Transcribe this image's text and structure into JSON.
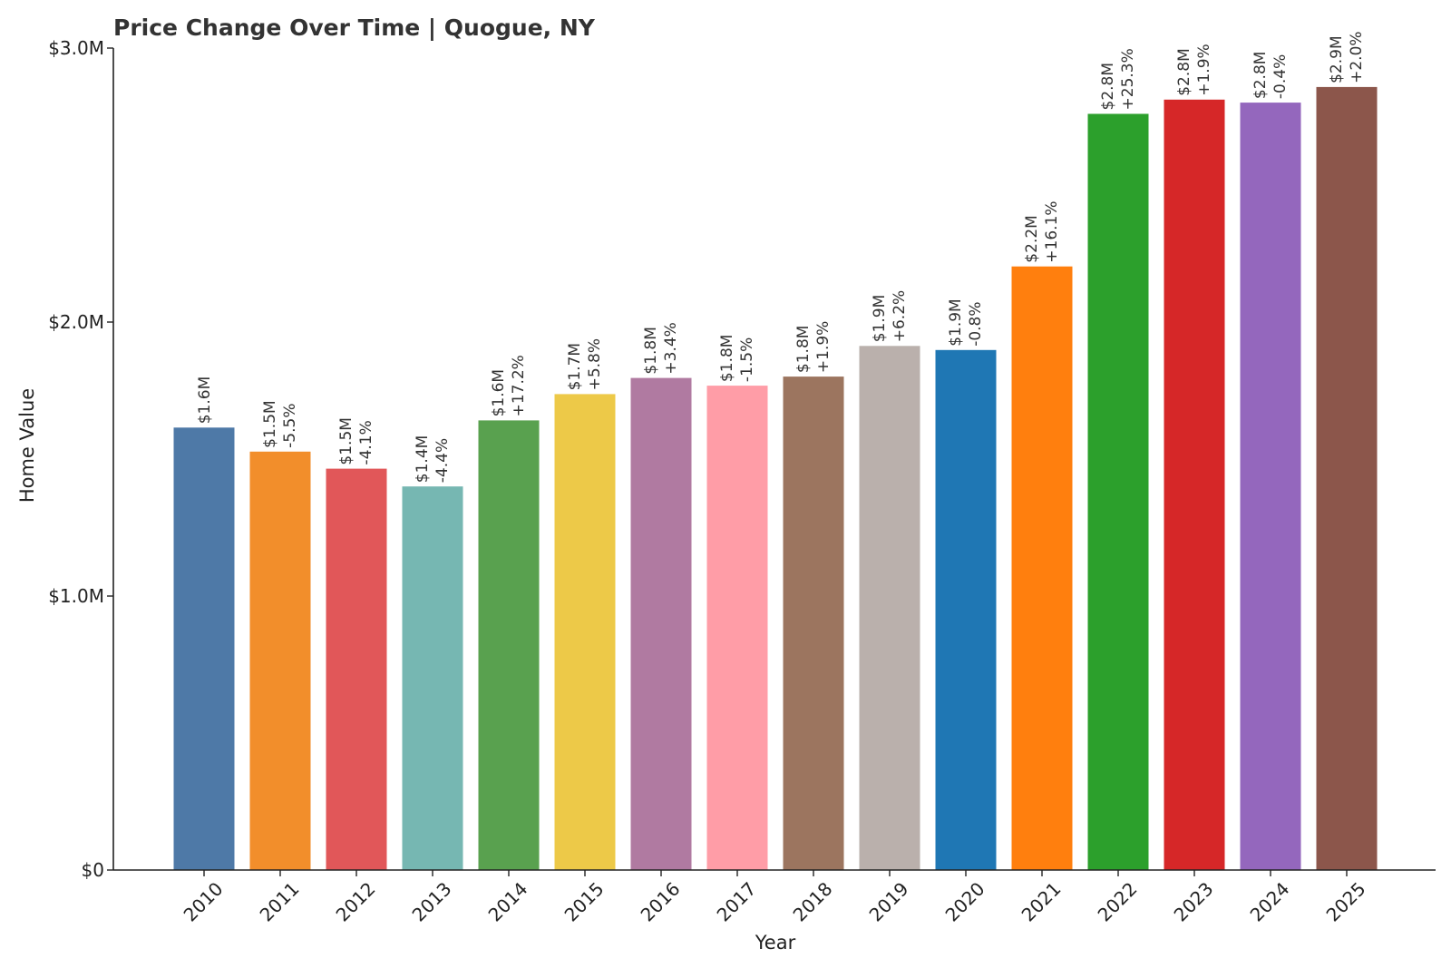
{
  "chart_data": {
    "type": "bar",
    "title": "Price Change Over Time | Quogue, NY",
    "xlabel": "Year",
    "ylabel": "Home Value",
    "ylim": [
      0,
      3000000
    ],
    "yticks": [
      {
        "value": 0,
        "label": "$0"
      },
      {
        "value": 1000000,
        "label": "$1.0M"
      },
      {
        "value": 2000000,
        "label": "$2.0M"
      },
      {
        "value": 3000000,
        "label": "$3.0M"
      }
    ],
    "grid": false,
    "legend": "none",
    "categories": [
      "2010",
      "2011",
      "2012",
      "2013",
      "2014",
      "2015",
      "2016",
      "2017",
      "2018",
      "2019",
      "2020",
      "2021",
      "2022",
      "2023",
      "2024",
      "2025"
    ],
    "values": [
      1615000,
      1527000,
      1465000,
      1400000,
      1641000,
      1737000,
      1796000,
      1768000,
      1801000,
      1913000,
      1898000,
      2203000,
      2760000,
      2812000,
      2801000,
      2858000
    ],
    "value_labels": [
      "$1.6M",
      "$1.5M",
      "$1.5M",
      "$1.4M",
      "$1.6M",
      "$1.7M",
      "$1.8M",
      "$1.8M",
      "$1.8M",
      "$1.9M",
      "$1.9M",
      "$2.2M",
      "$2.8M",
      "$2.8M",
      "$2.8M",
      "$2.9M"
    ],
    "change_labels": [
      "",
      "-5.5%",
      "-4.1%",
      "-4.4%",
      "+17.2%",
      "+5.8%",
      "+3.4%",
      "-1.5%",
      "+1.9%",
      "+6.2%",
      "-0.8%",
      "+16.1%",
      "+25.3%",
      "+1.9%",
      "-0.4%",
      "+2.0%"
    ],
    "colors": [
      "#4e79a7",
      "#f28e2b",
      "#e15759",
      "#76b7b2",
      "#59a14f",
      "#edc948",
      "#b07aa1",
      "#ff9da7",
      "#9c755f",
      "#bab0ac",
      "#1f77b4",
      "#ff7f0e",
      "#2ca02c",
      "#d62728",
      "#9467bd",
      "#8c564b"
    ]
  }
}
